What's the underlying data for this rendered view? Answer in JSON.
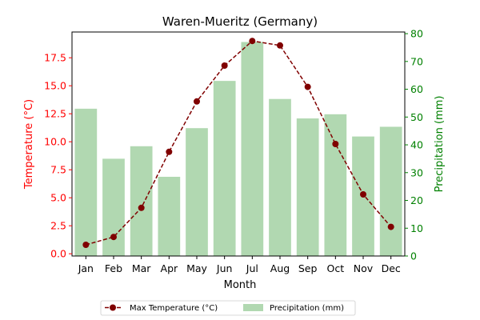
{
  "chart_data": {
    "type": "bar+line",
    "title": "Waren-Mueritz (Germany)",
    "xlabel": "Month",
    "categories": [
      "Jan",
      "Feb",
      "Mar",
      "Apr",
      "May",
      "Jun",
      "Jul",
      "Aug",
      "Sep",
      "Oct",
      "Nov",
      "Dec"
    ],
    "y_left": {
      "label": "Temperature (°C)",
      "range": [
        -0.2,
        19.8
      ],
      "ticks": [
        "0.0",
        "2.5",
        "5.0",
        "7.5",
        "10.0",
        "12.5",
        "15.0",
        "17.5"
      ],
      "color": "#ff0000"
    },
    "y_right": {
      "label": "Precipitation (mm)",
      "range": [
        0,
        80.6
      ],
      "ticks": [
        "0",
        "10",
        "20",
        "30",
        "40",
        "50",
        "60",
        "70",
        "80"
      ],
      "color": "#008000"
    },
    "series": [
      {
        "name": "Max Temperature (°C)",
        "type": "line",
        "axis": "left",
        "color": "#800000",
        "values": [
          0.8,
          1.5,
          4.1,
          9.1,
          13.6,
          16.8,
          19.0,
          18.6,
          14.9,
          9.8,
          5.3,
          2.4
        ]
      },
      {
        "name": "Precipitation (mm)",
        "type": "bar",
        "axis": "right",
        "color": "#b1d8b1",
        "values": [
          53,
          35,
          39.5,
          28.5,
          46,
          63,
          77,
          56.5,
          49.5,
          51,
          43,
          46.5
        ]
      }
    ],
    "legend_position": "bottom-center",
    "grid": false
  }
}
